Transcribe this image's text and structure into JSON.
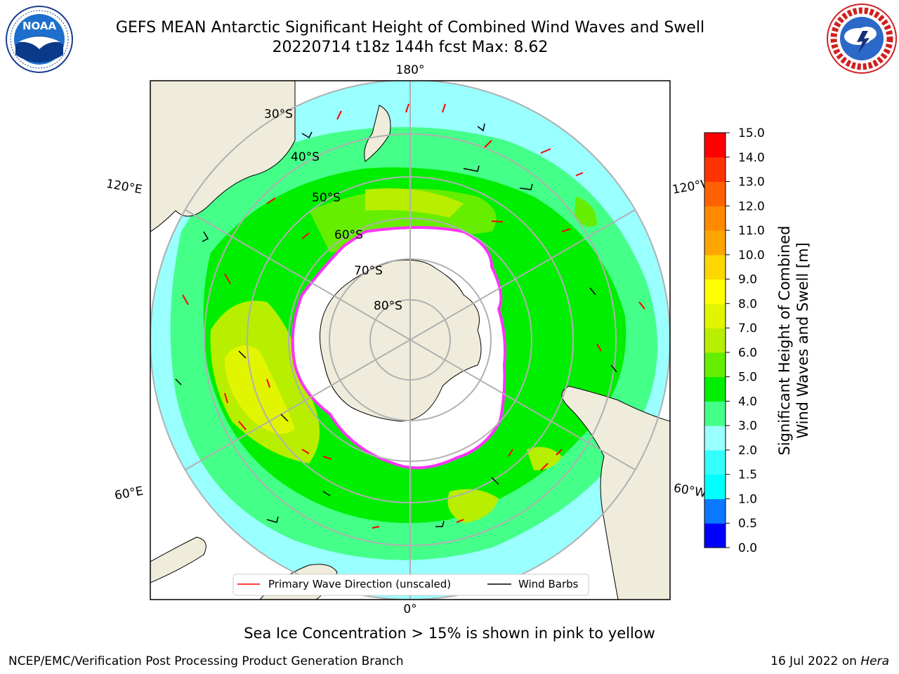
{
  "title": {
    "line1": "GEFS MEAN Antarctic Significant Height of Combined Wind Waves and Swell",
    "line2": "20220714 t18z 144h fcst   Max: 8.62"
  },
  "map": {
    "projection": "south-polar-stereographic",
    "lon_labels": {
      "top": "180°",
      "bottom": "0°",
      "upper_left": "120°E",
      "upper_right": "120°W",
      "lower_left": "60°E",
      "lower_right": "60°W"
    },
    "lat_labels": [
      "30°S",
      "40°S",
      "50°S",
      "60°S",
      "70°S",
      "80°S"
    ],
    "colors": {
      "land": "#efecdb",
      "ice_edge": "#ff33ff",
      "ice_fill": "#ffffff",
      "grid": "#b0b0b0"
    }
  },
  "legend": {
    "wave_label": "Primary Wave Direction (unscaled)",
    "wind_label": "Wind Barbs",
    "wave_color": "#ff0000",
    "wind_color": "#000000"
  },
  "colorbar": {
    "label_line1": "Significant Height of Combined",
    "label_line2": "Wind Waves and Swell [m]",
    "ticks": [
      "0.0",
      "0.5",
      "1.0",
      "1.5",
      "2.0",
      "3.0",
      "4.0",
      "5.0",
      "6.0",
      "7.0",
      "8.0",
      "9.0",
      "10.0",
      "11.0",
      "12.0",
      "13.0",
      "14.0",
      "15.0"
    ],
    "colors": [
      "#0000ff",
      "#0a78ff",
      "#00ffff",
      "#33ffff",
      "#99ffff",
      "#44ff88",
      "#00ee00",
      "#66ee00",
      "#b8ee00",
      "#e2f500",
      "#ffff00",
      "#ffd700",
      "#ffa500",
      "#ff8a00",
      "#ff6000",
      "#ff3300",
      "#ff0000"
    ]
  },
  "footer": {
    "caption": "Sea Ice Concentration > 15% is shown in pink to yellow",
    "left": "NCEP/EMC/Verification Post Processing Product Generation Branch",
    "right_date": "16 Jul 2022 on ",
    "right_host": "Hera"
  },
  "logos": {
    "noaa": {
      "name": "noaa-logo-icon",
      "text": "NOAA"
    },
    "nws": {
      "name": "nws-logo-icon",
      "text": "NATIONAL WEATHER SERVICE"
    }
  }
}
